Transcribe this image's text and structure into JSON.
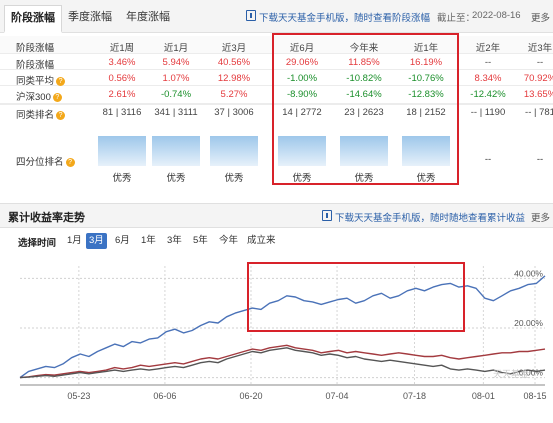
{
  "tabs": [
    {
      "label": "阶段涨幅",
      "active": true
    },
    {
      "label": "季度涨幅",
      "active": false
    },
    {
      "label": "年度涨幅",
      "active": false
    }
  ],
  "top_bar": {
    "download_link": "下载天天基金手机版，随时查看阶段涨幅",
    "deadline_label": "截止至：",
    "deadline_date": "2022-08-16",
    "more": "更多"
  },
  "table": {
    "header_label": "阶段涨幅",
    "columns": [
      "近1周",
      "近1月",
      "近3月",
      "近6月",
      "今年来",
      "近1年",
      "近2年",
      "近3年"
    ],
    "rows": [
      {
        "label": "阶段涨幅",
        "hint": false,
        "values": [
          "3.46%",
          "5.94%",
          "40.56%",
          "29.06%",
          "11.85%",
          "16.19%",
          "--",
          "--"
        ],
        "trend": [
          "up",
          "up",
          "up",
          "up",
          "up",
          "up",
          "neu",
          "neu"
        ]
      },
      {
        "label": "同类平均",
        "hint": true,
        "values": [
          "0.56%",
          "1.07%",
          "12.98%",
          "-1.00%",
          "-10.82%",
          "-10.76%",
          "8.34%",
          "70.92%"
        ],
        "trend": [
          "up",
          "up",
          "up",
          "down",
          "down",
          "down",
          "up",
          "up"
        ]
      },
      {
        "label": "沪深300",
        "hint": true,
        "values": [
          "2.61%",
          "-0.74%",
          "5.27%",
          "-8.90%",
          "-14.64%",
          "-12.83%",
          "-12.42%",
          "13.65%"
        ],
        "trend": [
          "up",
          "down",
          "up",
          "down",
          "down",
          "down",
          "down",
          "up"
        ]
      },
      {
        "label": "同类排名",
        "hint": true,
        "values": [
          "81 | 3116",
          "341 | 3111",
          "37 | 3006",
          "14 | 2772",
          "23 | 2623",
          "18 | 2152",
          "-- | 1190",
          "-- | 781"
        ],
        "trend": [
          "neu",
          "neu",
          "neu",
          "neu",
          "neu",
          "neu",
          "neu",
          "neu"
        ]
      }
    ],
    "quartile": {
      "label": "四分位排名",
      "hint": true,
      "values": [
        "优秀",
        "优秀",
        "优秀",
        "优秀",
        "优秀",
        "优秀",
        "--",
        "--"
      ]
    }
  },
  "chart_section": {
    "title": "累计收益率走势",
    "download_link": "下载天天基金手机版，随时随地查看累计收益",
    "more": "更多",
    "range_label": "选择时间",
    "ranges": [
      {
        "label": "1月",
        "active": false
      },
      {
        "label": "3月",
        "active": true
      },
      {
        "label": "6月",
        "active": false
      },
      {
        "label": "1年",
        "active": false
      },
      {
        "label": "3年",
        "active": false
      },
      {
        "label": "5年",
        "active": false
      },
      {
        "label": "今年",
        "active": false
      },
      {
        "label": "成立来",
        "active": false
      }
    ],
    "watermark": "天天基金"
  },
  "colors": {
    "up": "#e4393c",
    "down": "#1b8f2b",
    "link": "#2a5fa8",
    "highlight": "#d8222a",
    "series_fund": "#4a72b8",
    "series_peer": "#a33a3f",
    "series_index": "#555555"
  },
  "chart_data": {
    "type": "line",
    "x_ticks": [
      "05-23",
      "06-06",
      "06-20",
      "07-04",
      "07-18",
      "08-01",
      "08-15"
    ],
    "y_ticks": [
      "0.00%",
      "20.00%",
      "40.00%"
    ],
    "ylim": [
      -3,
      45
    ],
    "x_count": 62,
    "series": [
      {
        "color_key": "series_fund",
        "values": [
          0,
          2.5,
          3.5,
          4.5,
          4,
          5.5,
          8,
          9.5,
          8.5,
          10.5,
          12,
          13.5,
          12.5,
          14.5,
          14,
          15.5,
          16,
          18.5,
          19.5,
          18,
          19,
          21,
          22.5,
          22,
          24.5,
          26,
          27,
          28,
          27.5,
          30,
          31,
          33,
          32.5,
          31,
          30.5,
          29.5,
          30.5,
          31.5,
          32,
          30,
          31,
          33,
          34,
          32,
          33,
          35,
          36,
          35,
          36.5,
          37.5,
          38,
          36.5,
          37,
          36,
          32,
          31,
          33,
          35,
          36,
          37.5,
          38,
          41
        ]
      },
      {
        "color_key": "series_peer",
        "values": [
          0,
          0.3,
          0.8,
          1.2,
          1,
          1.5,
          2,
          2.5,
          2,
          2.5,
          3,
          4,
          3.5,
          4,
          5,
          4.5,
          5,
          5.5,
          6,
          5.5,
          6.5,
          7.5,
          8,
          7.5,
          8.5,
          9.5,
          10.5,
          11.5,
          11,
          12,
          12.5,
          13,
          12,
          11.5,
          11,
          10,
          10.5,
          11,
          10,
          10.5,
          10,
          9.5,
          9,
          9.5,
          10,
          9.5,
          9,
          8.5,
          8.5,
          9,
          8,
          7.5,
          8,
          8.5,
          9,
          9.5,
          10,
          10,
          10.5,
          10.5,
          11,
          11.5
        ]
      },
      {
        "color_key": "series_index",
        "values": [
          0,
          0.2,
          0.5,
          0.8,
          0.5,
          1,
          1.5,
          2,
          1.5,
          2,
          2.5,
          3,
          2.5,
          3,
          3.5,
          3,
          3.5,
          4,
          4.5,
          4,
          5,
          6,
          6.5,
          6,
          7.5,
          8.5,
          9.5,
          10.5,
          10,
          11,
          11.5,
          12,
          11,
          10.5,
          10,
          9,
          9.5,
          9,
          8,
          8.5,
          7.5,
          7,
          6.5,
          7,
          6.5,
          6,
          5.5,
          5,
          4.5,
          5,
          3.5,
          3,
          3.5,
          3,
          2.5,
          3,
          2,
          1.5,
          2.5,
          3,
          2.5,
          3
        ]
      }
    ]
  }
}
